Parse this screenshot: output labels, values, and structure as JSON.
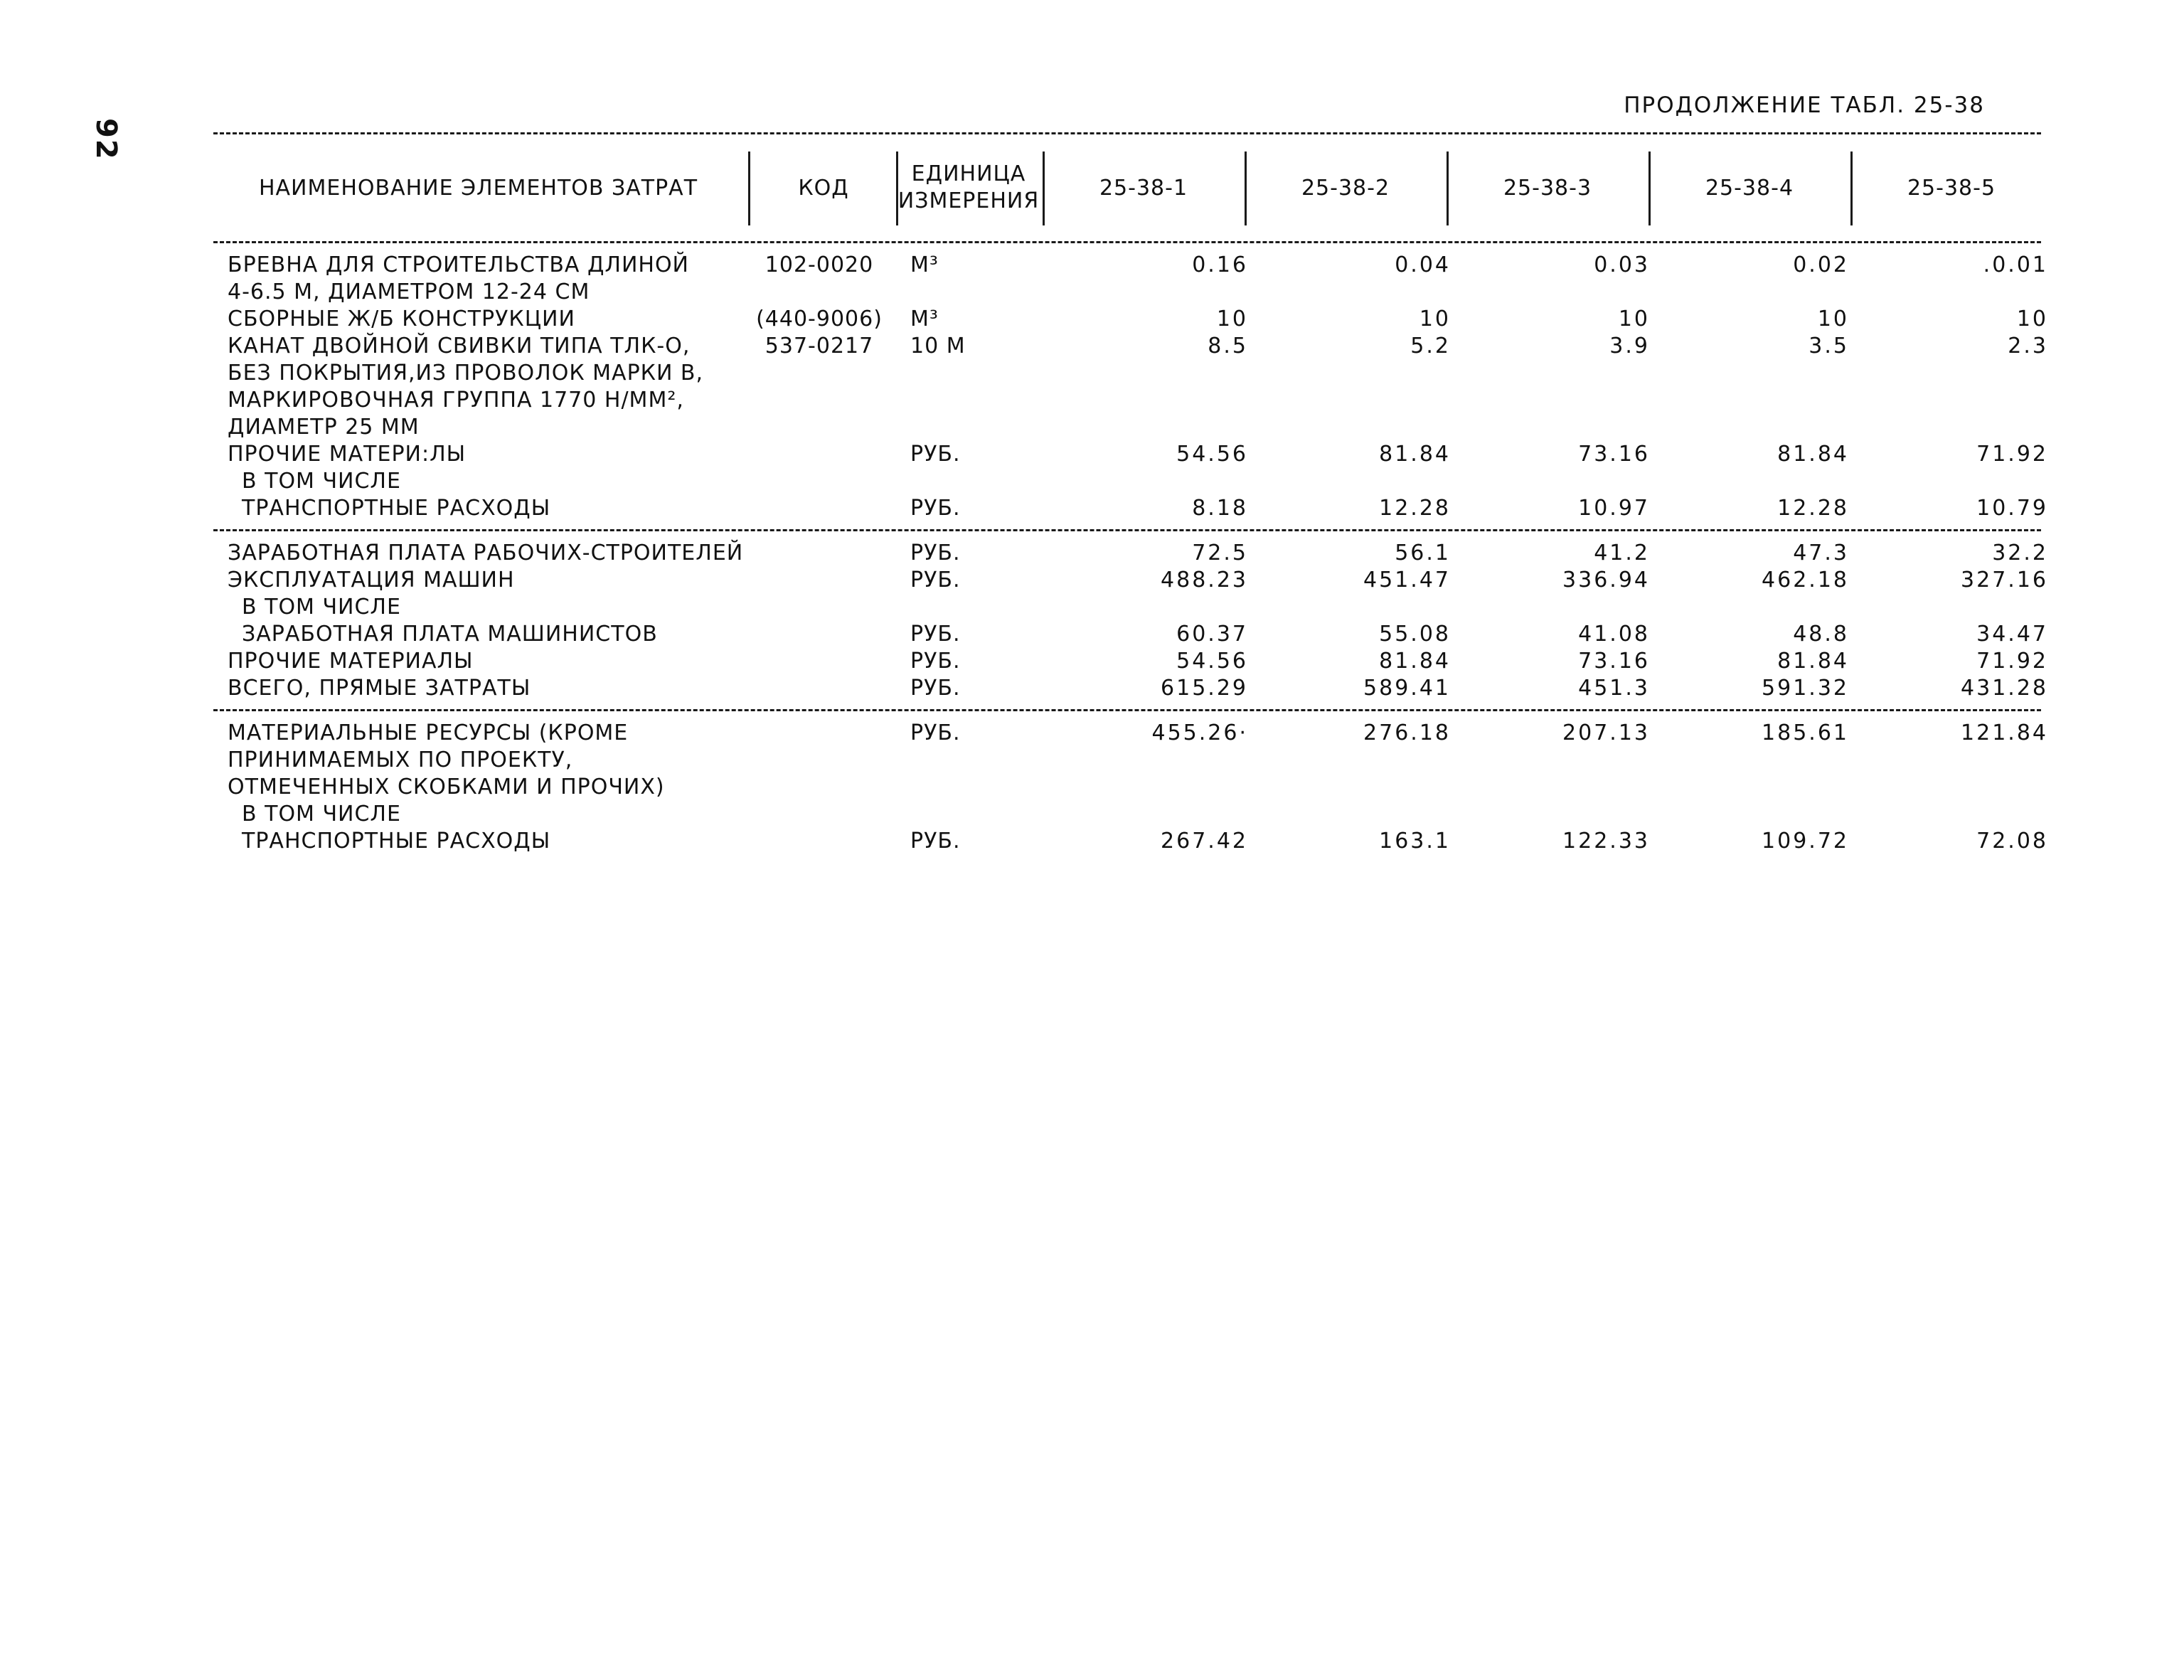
{
  "page": {
    "number": "92",
    "continuation_title": "ПРОДОЛЖЕНИЕ ТАБЛ. 25-38"
  },
  "table": {
    "headers": {
      "name": "НАИМЕНОВАНИЕ ЭЛЕМЕНТОВ ЗАТРАТ",
      "code": "КОД",
      "unit_line1": "ЕДИНИЦА",
      "unit_line2": "ИЗМЕРЕНИЯ",
      "cols": [
        "25-38-1",
        "25-38-2",
        "25-38-3",
        "25-38-4",
        "25-38-5"
      ]
    },
    "sections": [
      {
        "rows": [
          {
            "name": "БРЕВНА ДЛЯ СТРОИТЕЛЬСТВА ДЛИНОЙ",
            "code": "102-0020",
            "unit": "М³",
            "values": [
              "0.16",
              "0.04",
              "0.03",
              "0.02",
              ".0.01"
            ]
          },
          {
            "name": "4-6.5 М, ДИАМЕТРОМ 12-24 СМ",
            "code": "",
            "unit": "",
            "values": [
              "",
              "",
              "",
              "",
              ""
            ]
          },
          {
            "name": "СБОРНЫЕ Ж/Б КОНСТРУКЦИИ",
            "code": "(440-9006)",
            "unit": "М³",
            "values": [
              "10",
              "10",
              "10",
              "10",
              "10"
            ]
          },
          {
            "name": "КАНАТ ДВОЙНОЙ СВИВКИ ТИПА ТЛК-О,",
            "code": "537-0217",
            "unit": "10 М",
            "values": [
              "8.5",
              "5.2",
              "3.9",
              "3.5",
              "2.3"
            ]
          },
          {
            "name": "БЕЗ ПОКРЫТИЯ,ИЗ ПРОВОЛОК МАРКИ В,",
            "code": "",
            "unit": "",
            "values": [
              "",
              "",
              "",
              "",
              ""
            ]
          },
          {
            "name": "МАРКИРОВОЧНАЯ ГРУППА 1770 Н/ММ²,",
            "code": "",
            "unit": "",
            "values": [
              "",
              "",
              "",
              "",
              ""
            ]
          },
          {
            "name": "ДИАМЕТР 25 ММ",
            "code": "",
            "unit": "",
            "values": [
              "",
              "",
              "",
              "",
              ""
            ]
          },
          {
            "name": "ПРОЧИЕ МАТЕРИ:ЛЫ",
            "code": "",
            "unit": "РУБ.",
            "values": [
              "54.56",
              "81.84",
              "73.16",
              "81.84",
              "71.92"
            ]
          },
          {
            "name": "В ТОМ ЧИСЛЕ",
            "indent": true,
            "code": "",
            "unit": "",
            "values": [
              "",
              "",
              "",
              "",
              ""
            ]
          },
          {
            "name": "ТРАНСПОРТНЫЕ РАСХОДЫ",
            "indent": true,
            "code": "",
            "unit": "РУБ.",
            "values": [
              "8.18",
              "12.28",
              "10.97",
              "12.28",
              "10.79"
            ]
          }
        ]
      },
      {
        "rows": [
          {
            "name": "ЗАРАБОТНАЯ ПЛАТА РАБОЧИХ-СТРОИТЕЛЕЙ",
            "code": "",
            "unit": "РУБ.",
            "values": [
              "72.5",
              "56.1",
              "41.2",
              "47.3",
              "32.2"
            ]
          },
          {
            "name": "ЭКСПЛУАТАЦИЯ МАШИН",
            "code": "",
            "unit": "РУБ.",
            "values": [
              "488.23",
              "451.47",
              "336.94",
              "462.18",
              "327.16"
            ]
          },
          {
            "name": "В ТОМ ЧИСЛЕ",
            "indent": true,
            "code": "",
            "unit": "",
            "values": [
              "",
              "",
              "",
              "",
              ""
            ]
          },
          {
            "name": "ЗАРАБОТНАЯ ПЛАТА МАШИНИСТОВ",
            "indent": true,
            "code": "",
            "unit": "РУБ.",
            "values": [
              "60.37",
              "55.08",
              "41.08",
              "48.8",
              "34.47"
            ]
          },
          {
            "name": "ПРОЧИЕ МАТЕРИАЛЫ",
            "code": "",
            "unit": "РУБ.",
            "values": [
              "54.56",
              "81.84",
              "73.16",
              "81.84",
              "71.92"
            ]
          },
          {
            "name": "ВСЕГО, ПРЯМЫЕ ЗАТРАТЫ",
            "code": "",
            "unit": "РУБ.",
            "values": [
              "615.29",
              "589.41",
              "451.3",
              "591.32",
              "431.28"
            ]
          }
        ]
      },
      {
        "rows": [
          {
            "name": "МАТЕРИАЛЬНЫЕ РЕСУРСЫ (КРОМЕ",
            "code": "",
            "unit": "РУБ.",
            "values": [
              "455.26·",
              "276.18",
              "207.13",
              "185.61",
              "121.84"
            ]
          },
          {
            "name": "ПРИНИМАЕМЫХ ПО ПРОЕКТУ,",
            "code": "",
            "unit": "",
            "values": [
              "",
              "",
              "",
              "",
              ""
            ]
          },
          {
            "name": "ОТМЕЧЕННЫХ СКОБКАМИ И ПРОЧИХ)",
            "code": "",
            "unit": "",
            "values": [
              "",
              "",
              "",
              "",
              ""
            ]
          },
          {
            "name": "В ТОМ ЧИСЛЕ",
            "indent": true,
            "code": "",
            "unit": "",
            "values": [
              "",
              "",
              "",
              "",
              ""
            ]
          },
          {
            "name": "ТРАНСПОРТНЫЕ РАСХОДЫ",
            "indent": true,
            "code": "",
            "unit": "РУБ.",
            "values": [
              "267.42",
              "163.1",
              "122.33",
              "109.72",
              "72.08"
            ]
          }
        ]
      }
    ]
  }
}
